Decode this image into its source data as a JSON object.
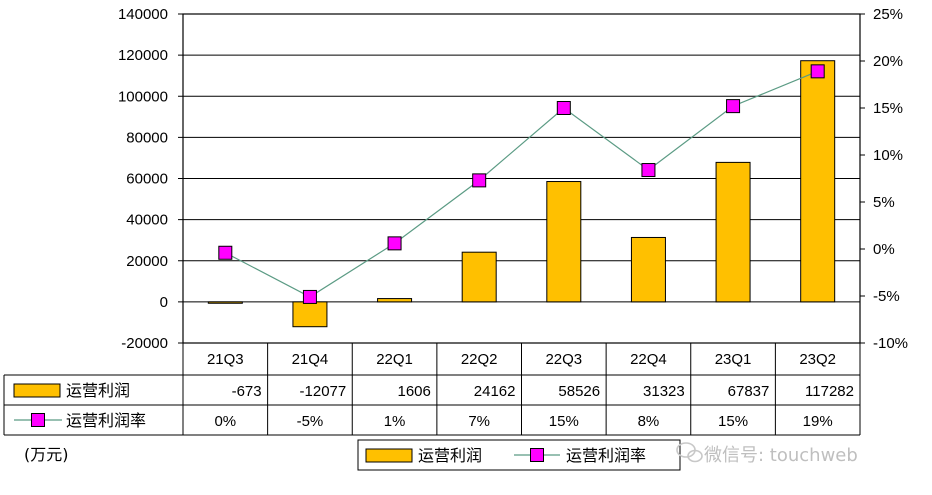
{
  "unit_label": "(万元)",
  "watermark": "微信号: touchweb",
  "colors": {
    "bar": "#FFC000",
    "line": "#5B9B84",
    "marker": "#FF00FF",
    "grid": "#000000"
  },
  "chart_data": {
    "type": "bar",
    "categories": [
      "21Q3",
      "21Q4",
      "22Q1",
      "22Q2",
      "22Q3",
      "22Q4",
      "23Q1",
      "23Q2"
    ],
    "series": [
      {
        "name": "运营利润",
        "type": "bar",
        "axis": "left",
        "values": [
          -673,
          -12077,
          1606,
          24162,
          58526,
          31323,
          67837,
          117282
        ]
      },
      {
        "name": "运营利润率",
        "type": "line",
        "axis": "right",
        "values": [
          -0.4,
          -5.1,
          0.6,
          7.3,
          15.0,
          8.4,
          15.2,
          18.9
        ],
        "labels": [
          "0%",
          "-5%",
          "1%",
          "7%",
          "15%",
          "8%",
          "15%",
          "19%"
        ]
      }
    ],
    "y_left": {
      "ylim": [
        -20000,
        140000
      ],
      "ticks": [
        "140000",
        "120000",
        "100000",
        "80000",
        "60000",
        "40000",
        "20000",
        "0",
        "-20000"
      ]
    },
    "y_right": {
      "ylim": [
        -10,
        25
      ],
      "ticks": [
        "25%",
        "20%",
        "15%",
        "10%",
        "5%",
        "0%",
        "-5%",
        "-10%"
      ]
    },
    "grid": true,
    "legend": {
      "position": "bottom-center",
      "entries": [
        "运营利润",
        "运营利润率"
      ]
    }
  }
}
